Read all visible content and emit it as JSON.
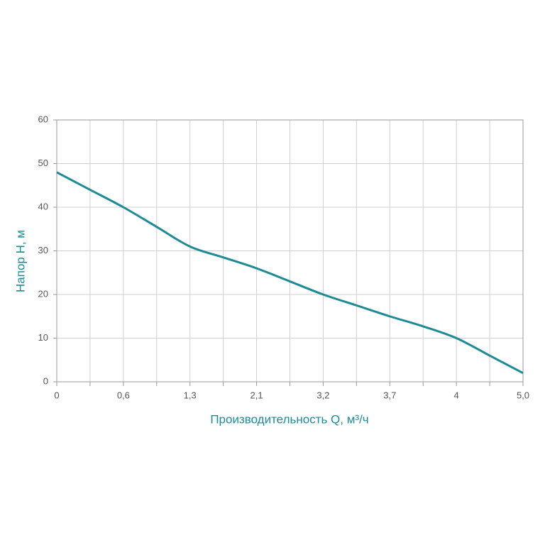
{
  "chart_data": {
    "type": "line",
    "x_label": "Производительность Q, м³/ч",
    "y_label": "Напор Н, м",
    "categories": [
      "0",
      null,
      "0,6",
      null,
      "1,3",
      null,
      "2,1",
      null,
      "3,2",
      null,
      "3,7",
      null,
      "4",
      null,
      "5,0"
    ],
    "series": [
      {
        "color": "#1e8a96",
        "values": [
          48,
          44,
          40,
          35.5,
          31,
          28.5,
          26,
          23,
          20,
          17.5,
          15,
          12.7,
          10,
          6,
          2
        ]
      }
    ],
    "ylim": [
      0,
      60
    ],
    "yticks": [
      0,
      10,
      20,
      30,
      40,
      50,
      60
    ],
    "grid": true
  }
}
